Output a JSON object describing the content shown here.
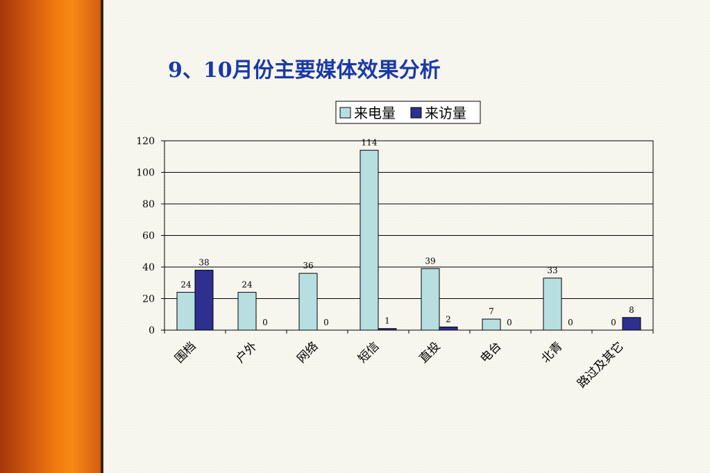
{
  "slide": {
    "title": "9、10月份主要媒体效果分析"
  },
  "colors": {
    "sidebar": "#f1790f",
    "title": "#1a39a6",
    "series_call": "#b7dfe2",
    "series_visit": "#2e2f8f"
  },
  "chart_data": {
    "type": "bar",
    "categories": [
      "围档",
      "户外",
      "网络",
      "短信",
      "直投",
      "电台",
      "北青",
      "路过及其它"
    ],
    "series": [
      {
        "name": "来电量",
        "values": [
          24,
          24,
          36,
          114,
          39,
          7,
          33,
          0
        ]
      },
      {
        "name": "来访量",
        "values": [
          38,
          0,
          0,
          1,
          2,
          0,
          0,
          8
        ]
      }
    ],
    "ylim": [
      0,
      120
    ],
    "yticks": [
      0,
      20,
      40,
      60,
      80,
      100,
      120
    ],
    "grid": true,
    "legend": "top"
  }
}
